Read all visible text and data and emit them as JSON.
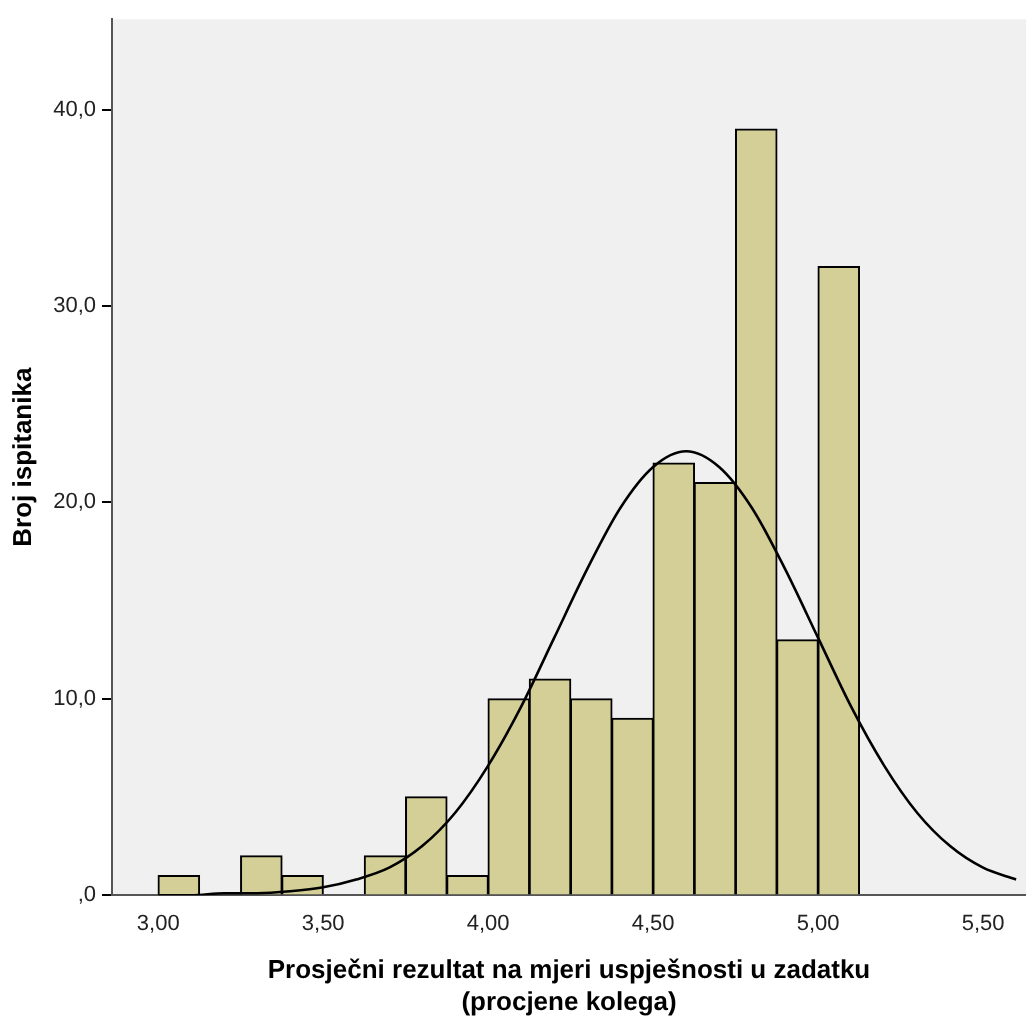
{
  "chart_data": {
    "type": "histogram",
    "xlabel": "Prosječni rezultat na mjeri uspješnosti u zadatku\n(procjene kolega)",
    "ylabel": "Broj ispitanika",
    "bins": [
      3.0,
      3.125,
      3.25,
      3.375,
      3.5,
      3.625,
      3.75,
      3.875,
      4.0,
      4.125,
      4.25,
      4.375,
      4.5,
      4.625,
      4.75,
      4.875,
      5.0,
      5.125
    ],
    "values": [
      1,
      0,
      2,
      1,
      0,
      2,
      5,
      1,
      10,
      11,
      10,
      9,
      22,
      21,
      39,
      13,
      32
    ],
    "color": "#d4cf97",
    "series": [
      {
        "type": "line",
        "color": "#000000",
        "x": [
          3.0,
          3.1,
          3.2,
          3.3,
          3.4,
          3.5,
          3.6,
          3.7,
          3.8,
          3.9,
          4.0,
          4.1,
          4.2,
          4.3,
          4.4,
          4.5,
          4.6,
          4.7,
          4.8,
          4.9,
          5.0,
          5.1,
          5.2,
          5.3,
          5.4,
          5.5,
          5.6
        ],
        "values": [
          0,
          0,
          0.1,
          0.1,
          0.2,
          0.4,
          0.8,
          1.4,
          2.5,
          4.2,
          6.6,
          9.6,
          13.1,
          16.6,
          19.7,
          21.8,
          22.6,
          21.8,
          19.7,
          16.6,
          13.1,
          9.6,
          6.6,
          4.2,
          2.5,
          1.4,
          0.8
        ]
      }
    ],
    "xlim": [
      2.86,
      5.63
    ],
    "ylim": [
      0,
      44.6
    ],
    "xticks": [
      {
        "value": 3,
        "label": "3,00"
      },
      {
        "value": 3.5,
        "label": "3,50"
      },
      {
        "value": 4,
        "label": "4,00"
      },
      {
        "value": 4.5,
        "label": "4,50"
      },
      {
        "value": 5,
        "label": "5,00"
      },
      {
        "value": 5.5,
        "label": "5,50"
      }
    ],
    "yticks": [
      {
        "value": 0,
        "label": ",0"
      },
      {
        "value": 10,
        "label": "10,0"
      },
      {
        "value": 20,
        "label": "20,0"
      },
      {
        "value": 30,
        "label": "30,0"
      },
      {
        "value": 40,
        "label": "40,0"
      }
    ],
    "grid": false,
    "legend": false,
    "marker": "none"
  }
}
